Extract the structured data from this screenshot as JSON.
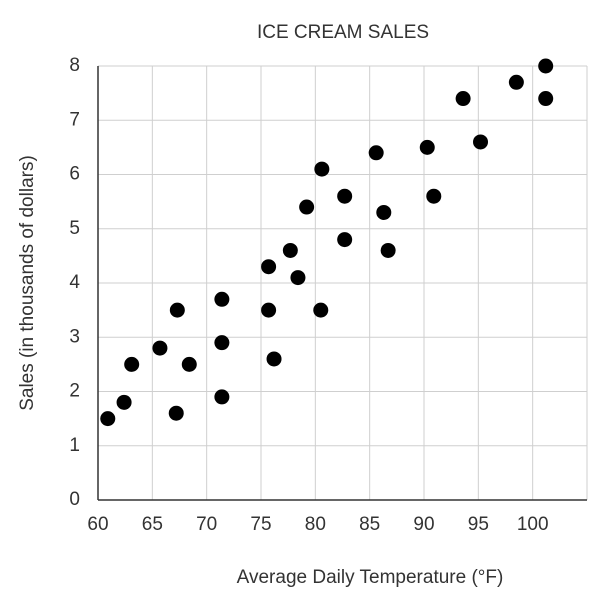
{
  "chart_data": {
    "type": "scatter",
    "title": "ICE CREAM SALES",
    "x_label": "Average Daily Temperature (°F)",
    "y_label": "Sales (in thousands of dollars)",
    "series": [
      {
        "color": "#000000",
        "x": [
          60.9,
          62.4,
          63.1,
          65.7,
          67.3,
          67.2,
          68.4,
          71.4,
          71.4,
          71.4,
          75.7,
          75.7,
          76.2,
          77.7,
          78.4,
          79.2,
          80.5,
          80.6,
          82.7,
          82.7,
          85.6,
          86.3,
          86.7,
          90.3,
          90.9,
          93.6,
          95.2,
          98.5,
          101.2,
          101.2
        ],
        "values": [
          1.5,
          1.8,
          2.5,
          2.8,
          3.5,
          1.6,
          2.5,
          3.7,
          2.9,
          1.9,
          4.3,
          3.5,
          2.6,
          4.6,
          4.1,
          5.4,
          3.5,
          6.1,
          5.6,
          4.8,
          6.4,
          5.3,
          4.6,
          6.5,
          5.6,
          7.4,
          6.6,
          7.7,
          8.0,
          7.4
        ]
      }
    ],
    "xlim": [
      60,
      105
    ],
    "xticks": [
      60,
      65,
      70,
      75,
      80,
      85,
      90,
      95,
      100
    ],
    "ylim": [
      0,
      8
    ],
    "yticks": [
      0,
      1,
      2,
      3,
      4,
      5,
      6,
      7,
      8
    ],
    "grid": true
  }
}
